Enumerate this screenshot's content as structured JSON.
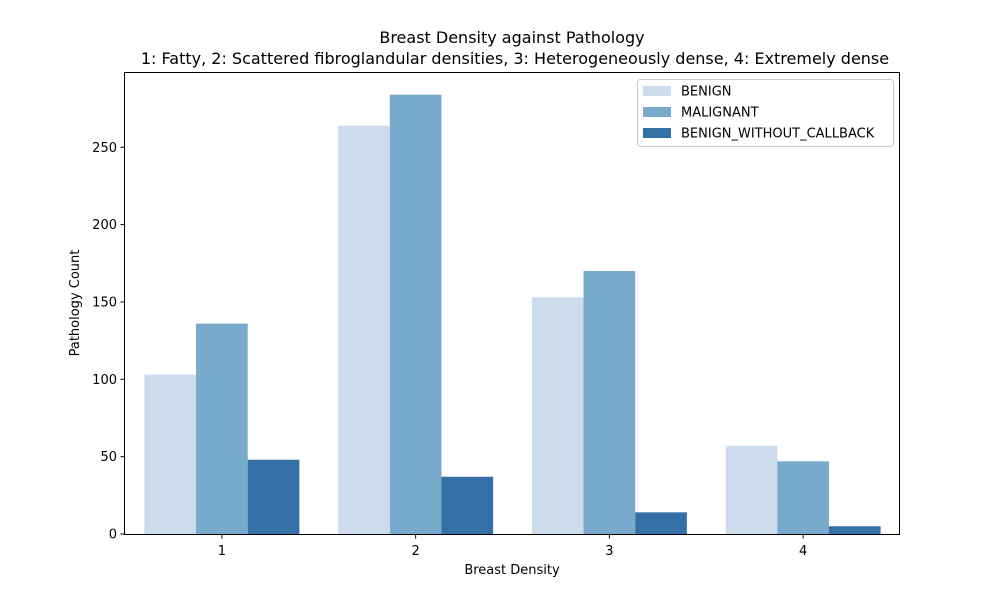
{
  "chart_data": {
    "type": "bar",
    "title": "Breast Density against Pathology",
    "subtitle": "1: Fatty, 2: Scattered fibroglandular densities, 3: Heterogeneously dense, 4: Extremely dense",
    "xlabel": "Breast Density",
    "ylabel": "Pathology Count",
    "categories": [
      "1",
      "2",
      "3",
      "4"
    ],
    "series": [
      {
        "name": "BENIGN",
        "values": [
          103,
          264,
          153,
          57
        ],
        "color": "#cddcec"
      },
      {
        "name": "MALIGNANT",
        "values": [
          136,
          284,
          170,
          47
        ],
        "color": "#77aacb"
      },
      {
        "name": "BENIGN_WITHOUT_CALLBACK",
        "values": [
          48,
          37,
          14,
          5
        ],
        "color": "#3470a5"
      }
    ],
    "ylim": [
      0,
      298
    ],
    "yticks": [
      0,
      50,
      100,
      150,
      200,
      250
    ],
    "grid": false,
    "legend_position": "top-right"
  }
}
